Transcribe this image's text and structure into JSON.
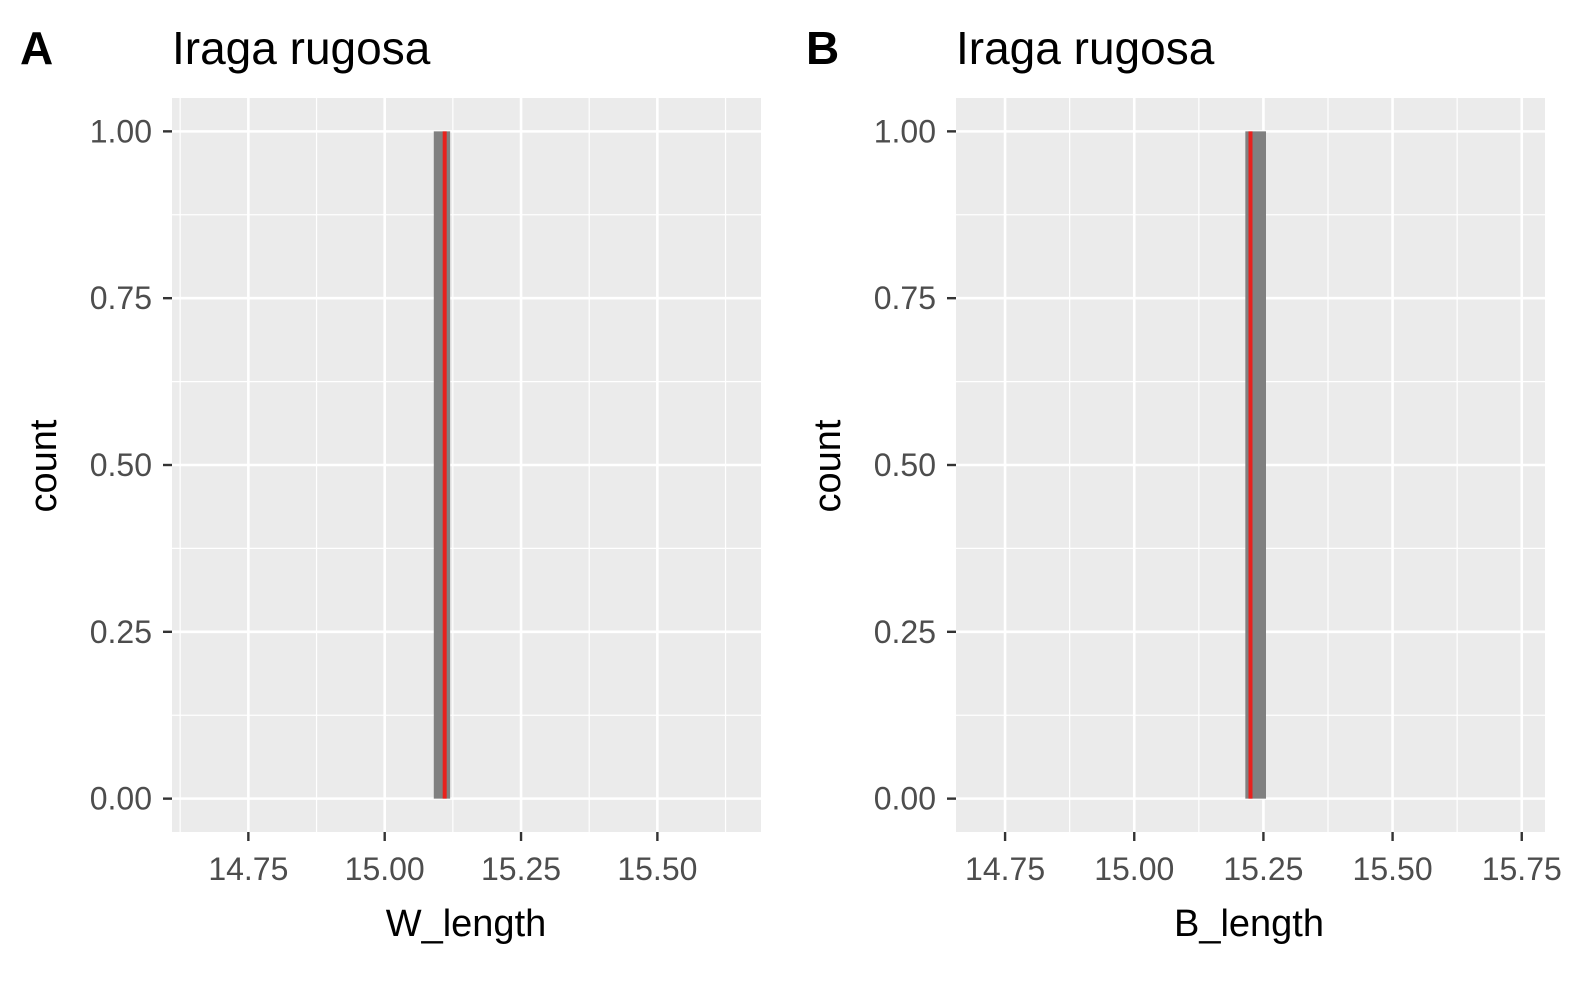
{
  "chart_data": [
    {
      "type": "bar",
      "panel_label": "A",
      "title": "Iraga rugosa",
      "xlabel": "W_length",
      "ylabel": "count",
      "xlim": [
        14.61,
        15.69
      ],
      "ylim": [
        -0.05,
        1.05
      ],
      "x_ticks": [
        14.75,
        15.0,
        15.25,
        15.5
      ],
      "x_tick_labels": [
        "14.75",
        "15.00",
        "15.25",
        "15.50"
      ],
      "y_ticks": [
        0,
        0.25,
        0.5,
        0.75,
        1.0
      ],
      "y_tick_labels": [
        "0.00",
        "0.25",
        "0.50",
        "0.75",
        "1.00"
      ],
      "bars": [
        {
          "xmin": 15.09,
          "xmax": 15.12,
          "count": 1
        }
      ],
      "vline": {
        "x": 15.11,
        "color": "#e8211d"
      },
      "grid": true,
      "colors": {
        "panel_bg": "#ebebeb",
        "grid": "#ffffff",
        "bar": "#808080"
      }
    },
    {
      "type": "bar",
      "panel_label": "B",
      "title": "Iraga rugosa",
      "xlabel": "B_length",
      "ylabel": "count",
      "xlim": [
        14.655,
        15.795
      ],
      "ylim": [
        -0.05,
        1.05
      ],
      "x_ticks": [
        14.75,
        15.0,
        15.25,
        15.5,
        15.75
      ],
      "x_tick_labels": [
        "14.75",
        "15.00",
        "15.25",
        "15.50",
        "15.75"
      ],
      "y_ticks": [
        0,
        0.25,
        0.5,
        0.75,
        1.0
      ],
      "y_tick_labels": [
        "0.00",
        "0.25",
        "0.50",
        "0.75",
        "1.00"
      ],
      "bars": [
        {
          "xmin": 15.215,
          "xmax": 15.255,
          "count": 1
        }
      ],
      "vline": {
        "x": 15.225,
        "color": "#e8211d"
      },
      "grid": true,
      "colors": {
        "panel_bg": "#ebebeb",
        "grid": "#ffffff",
        "bar": "#808080"
      }
    }
  ]
}
